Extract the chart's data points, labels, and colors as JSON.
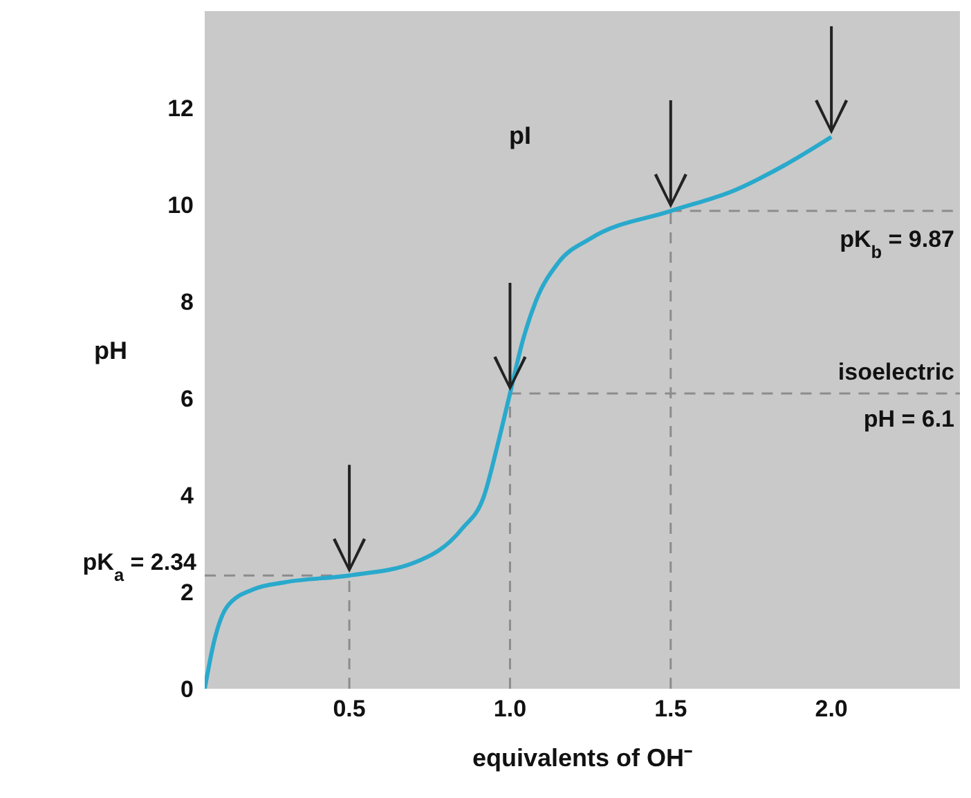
{
  "chart_data": {
    "type": "line",
    "xlabel": "equivalents of OH⁻",
    "ylabel": "pH",
    "x": [
      0.05,
      0.08,
      0.12,
      0.2,
      0.3,
      0.5,
      0.7,
      0.85,
      0.92,
      0.96,
      1.0,
      1.04,
      1.08,
      1.15,
      1.25,
      1.5,
      1.7,
      1.85,
      2.0
    ],
    "series": [
      {
        "color": "#29a9cc",
        "values": [
          0,
          1,
          1.7,
          2.05,
          2.2,
          2.34,
          2.6,
          3.3,
          4.0,
          5.0,
          6.1,
          7.2,
          8.0,
          8.8,
          9.3,
          9.87,
          10.3,
          10.8,
          11.4
        ]
      }
    ],
    "xlim": [
      0.05,
      2.4
    ],
    "xticks": [
      0.5,
      {
        "value": 1.0,
        "label": "1.0"
      },
      1.5,
      {
        "value": 2.0,
        "label": "2.0"
      }
    ],
    "ylim": [
      0,
      14
    ],
    "yticks": [
      0,
      2,
      4,
      6,
      8,
      10,
      12
    ],
    "grid": false,
    "legend": false,
    "marker": "none",
    "line_style": "solid",
    "annotations": [
      "pI"
    ],
    "ref_lines": [
      {
        "axis": "x",
        "value": 0.5,
        "color": "#8c8c8c",
        "line_style": "dashed"
      },
      {
        "axis": "x",
        "value": 1.0,
        "color": "#8c8c8c",
        "line_style": "dashed"
      },
      {
        "axis": "x",
        "value": 1.5,
        "color": "#8c8c8c",
        "line_style": "dashed"
      },
      {
        "axis": "y",
        "value": 2.34,
        "label": "pK$_{a}$ = 2.34",
        "color": "#8c8c8c",
        "line_style": "dashed"
      },
      {
        "axis": "y",
        "value": 6.1,
        "label": "isoelectric\npH = 6.1",
        "color": "#8c8c8c",
        "line_style": "dashed"
      },
      {
        "axis": "y",
        "value": 9.87,
        "label": "pK$_{b}$ = 9.87",
        "color": "#8c8c8c",
        "line_style": "dashed"
      }
    ]
  }
}
